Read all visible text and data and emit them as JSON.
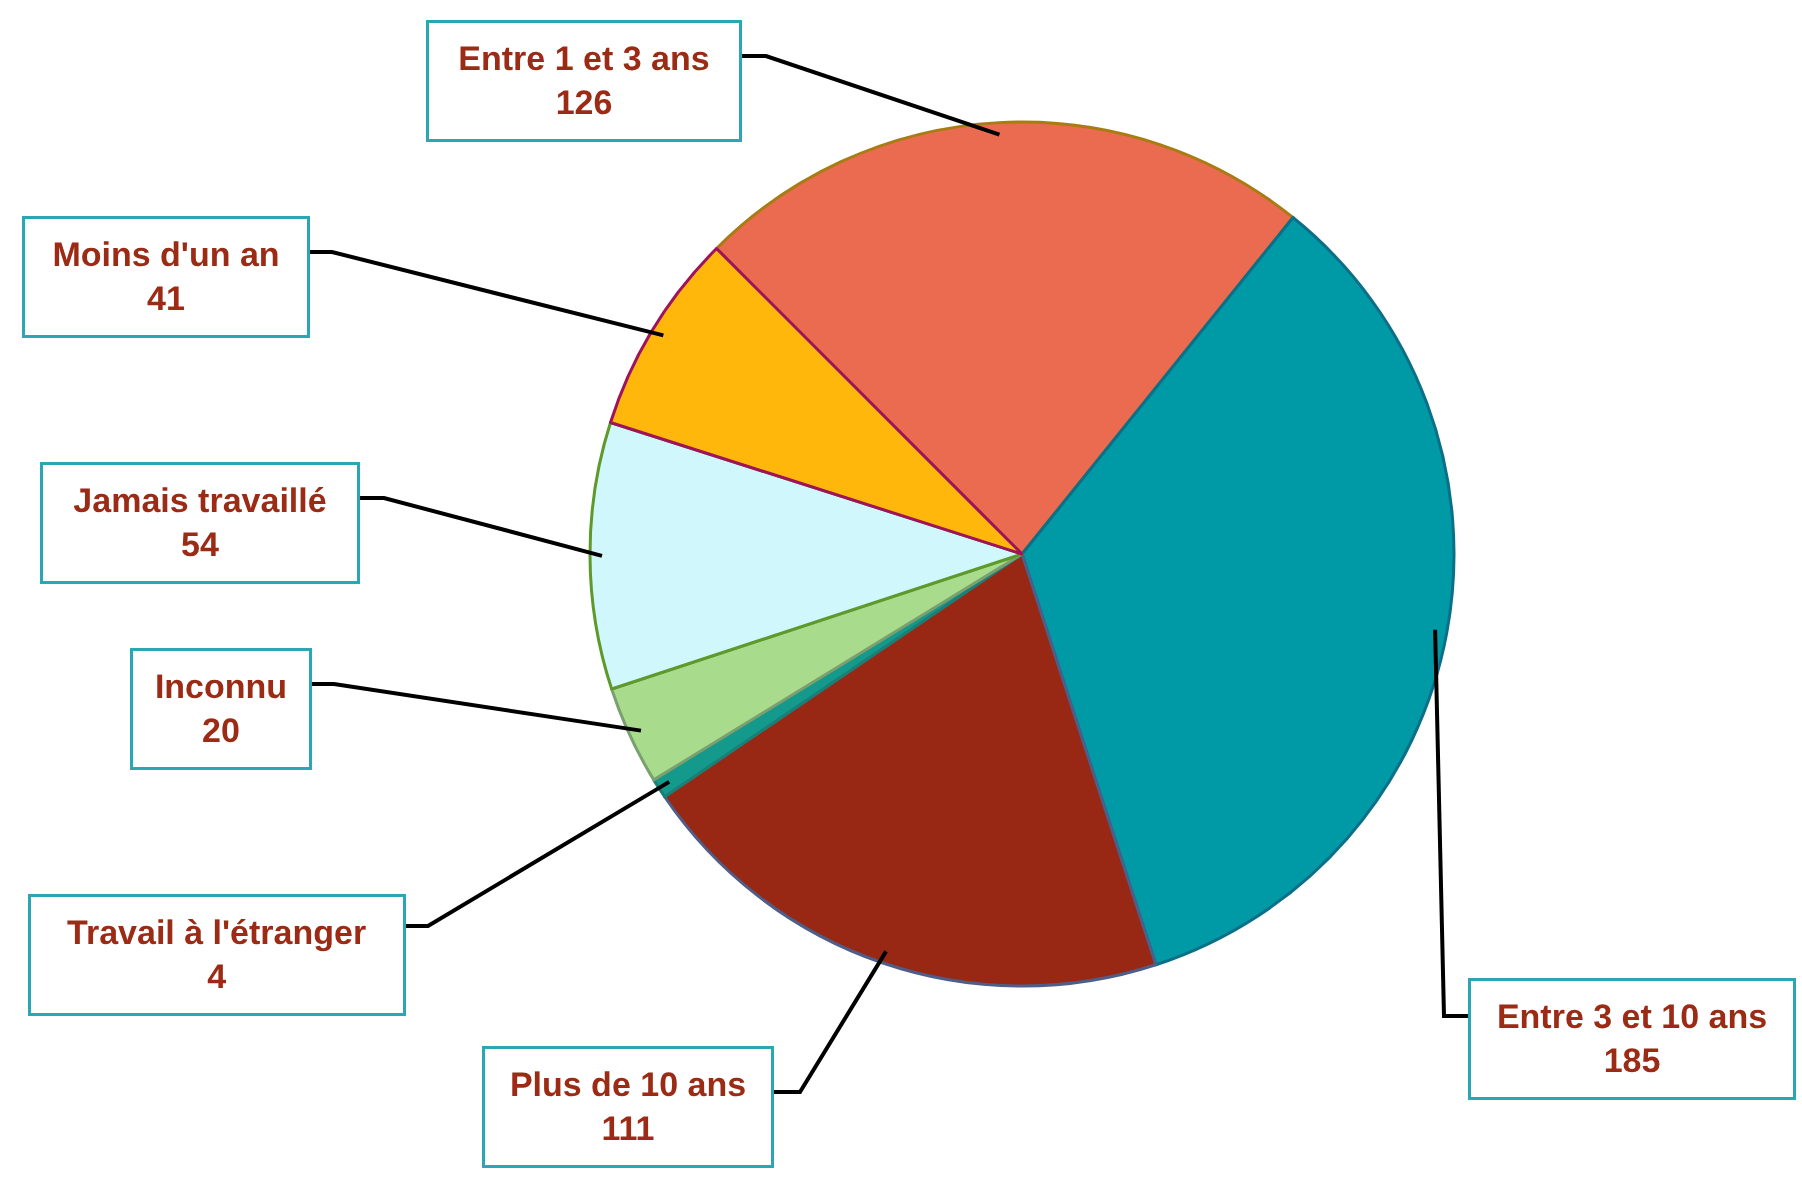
{
  "chart_data": {
    "type": "pie",
    "categories": [
      "Entre 1 et 3 ans",
      "Entre 3 et 10 ans",
      "Plus de 10 ans",
      "Travail à l'étranger",
      "Inconnu",
      "Jamais travaillé",
      "Moins d'un an"
    ],
    "values": [
      126,
      185,
      111,
      4,
      20,
      54,
      41
    ],
    "colors": [
      "#ea6b50",
      "#0099a6",
      "#982813",
      "#139a8c",
      "#a8dc8c",
      "#d0f8fc",
      "#ffb70c"
    ],
    "data_labels": true
  }
}
